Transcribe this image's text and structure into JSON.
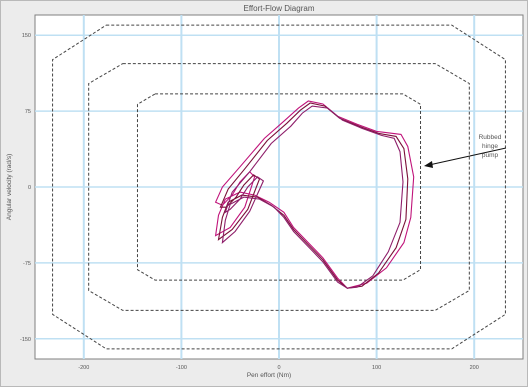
{
  "chart_data": {
    "type": "line",
    "title": "Effort-Flow Diagram",
    "xlabel": "Pen effort (Nm)",
    "ylabel": "Angular velocity (rad/s)",
    "xlim": [
      -250,
      250
    ],
    "ylim": [
      -170,
      170
    ],
    "x_ticks": [
      -200,
      -100,
      0,
      100,
      200
    ],
    "y_ticks": [
      -150,
      -75,
      0,
      75,
      150
    ],
    "grid": true,
    "annotations": [
      {
        "text": "Rubbed hinge pump"
      }
    ],
    "series": [
      {
        "color": "#c0137a",
        "x": [
          -65,
          -58,
          -40,
          -15,
          5,
          20,
          30,
          45,
          60,
          80,
          100,
          125,
          132,
          138,
          135,
          128,
          110,
          90,
          70,
          60,
          45,
          35,
          25,
          15,
          5,
          -10,
          -25,
          -40,
          -55,
          -62,
          -65,
          -50,
          -35,
          -25,
          -30,
          -40,
          -48,
          -58,
          -65
        ],
        "y": [
          -15,
          0,
          20,
          48,
          65,
          78,
          85,
          82,
          70,
          62,
          55,
          52,
          40,
          10,
          -30,
          -55,
          -80,
          -95,
          -100,
          -90,
          -70,
          -60,
          -50,
          -40,
          -25,
          -15,
          -8,
          -5,
          -12,
          -28,
          -48,
          -40,
          -20,
          10,
          15,
          5,
          -8,
          -18,
          -15
        ]
      },
      {
        "color": "#7a1038",
        "x": [
          -60,
          -52,
          -35,
          -12,
          8,
          22,
          32,
          47,
          62,
          82,
          102,
          120,
          128,
          132,
          130,
          120,
          102,
          85,
          70,
          60,
          45,
          35,
          25,
          15,
          5,
          -8,
          -22,
          -38,
          -52,
          -58,
          -62,
          -48,
          -32,
          -20,
          -26,
          -36,
          -44,
          -54,
          -60
        ],
        "y": [
          -20,
          -2,
          18,
          46,
          63,
          76,
          83,
          80,
          68,
          60,
          53,
          50,
          38,
          8,
          -32,
          -60,
          -85,
          -98,
          -100,
          -92,
          -72,
          -62,
          -52,
          -42,
          -28,
          -18,
          -10,
          -8,
          -15,
          -30,
          -52,
          -42,
          -22,
          8,
          12,
          2,
          -10,
          -20,
          -20
        ]
      },
      {
        "color": "#8e1e6a",
        "x": [
          -55,
          -48,
          -30,
          -8,
          12,
          24,
          34,
          50,
          65,
          85,
          105,
          118,
          124,
          127,
          124,
          112,
          96,
          80,
          70,
          60,
          45,
          35,
          25,
          15,
          5,
          -5,
          -20,
          -36,
          -50,
          -55,
          -58,
          -45,
          -30,
          -16,
          -22,
          -32,
          -40,
          -50,
          -55
        ],
        "y": [
          -25,
          -5,
          15,
          43,
          60,
          73,
          80,
          78,
          66,
          58,
          51,
          48,
          35,
          5,
          -35,
          -64,
          -88,
          -99,
          -100,
          -94,
          -74,
          -64,
          -54,
          -44,
          -30,
          -20,
          -12,
          -10,
          -17,
          -33,
          -55,
          -44,
          -24,
          6,
          10,
          0,
          -12,
          -22,
          -25
        ]
      }
    ]
  }
}
